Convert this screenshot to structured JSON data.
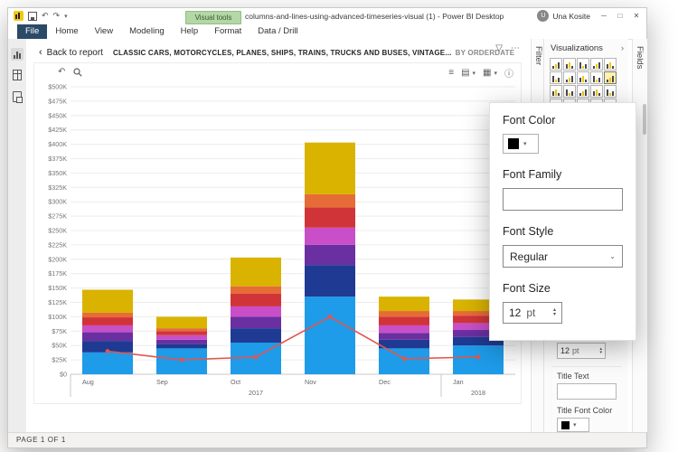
{
  "window": {
    "title": "columns-and-lines-using-advanced-timeseries-visual (1) - Power BI Desktop",
    "user": "Una Kosite",
    "user_initial": "U"
  },
  "ribbon": {
    "file": "File",
    "tabs": [
      "Home",
      "View",
      "Modeling",
      "Help"
    ],
    "contextual_group": "Visual tools",
    "contextual_tabs": [
      "Format",
      "Data / Drill"
    ]
  },
  "canvas": {
    "back_label": "Back to report",
    "visual_title": "CLASSIC CARS, MOTORCYCLES, PLANES, SHIPS, TRAINS, TRUCKS AND BUSES, VINTAGE...",
    "visual_title_by": "BY ORDERDATE"
  },
  "filters_pane": {
    "title": "Filter"
  },
  "visualizations_pane": {
    "title": "Visualizations",
    "selected": "line-and-stacked-column",
    "icons": [
      "stacked-bar-chart",
      "stacked-column-chart",
      "clustered-bar-chart",
      "clustered-column-chart",
      "100-stacked-bar-chart",
      "100-stacked-column-chart",
      "line-chart",
      "area-chart",
      "stacked-area-chart",
      "line-and-stacked-column",
      "line-and-clustered-column",
      "ribbon-chart",
      "waterfall-chart",
      "scatter-chart",
      "pie-chart",
      "donut-chart",
      "treemap",
      "map",
      "filled-map",
      "funnel",
      "gauge",
      "card",
      "multi-row-card",
      "kpi",
      "slicer",
      "table",
      "matrix",
      "r-script-visual"
    ]
  },
  "fields_pane": {
    "title": "Fields"
  },
  "format_popup": {
    "font_color_label": "Font Color",
    "font_family_label": "Font Family",
    "font_family_value": "",
    "font_style_label": "Font Style",
    "font_style_value": "Regular",
    "font_size_label": "Font Size",
    "font_size_value": "12",
    "font_size_unit": "pt"
  },
  "format_pane": {
    "text_size_value": "12",
    "text_size_unit": "pt",
    "title_text_label": "Title Text",
    "title_font_color_label": "Title Font Color"
  },
  "status_bar": {
    "page_indicator": "PAGE 1 OF 1"
  },
  "chart_data": {
    "type": "bar",
    "stacked": true,
    "title": "CLASSIC CARS, MOTORCYCLES, PLANES, SHIPS, TRAINS, TRUCKS AND BUSES, VINTAGE... BY ORDERDATE",
    "categories": [
      "Aug",
      "Sep",
      "Oct",
      "Nov",
      "Dec",
      "Jan"
    ],
    "year_groups": [
      {
        "label": "2017",
        "span": [
          0,
          4
        ]
      },
      {
        "label": "2018",
        "span": [
          5,
          5
        ]
      }
    ],
    "series": [
      {
        "name": "CLASSIC CARS",
        "color": "#1E9BE9",
        "values": [
          38000,
          45000,
          55000,
          135000,
          45000,
          50000
        ]
      },
      {
        "name": "MOTORCYCLES",
        "color": "#1F3A93",
        "values": [
          20000,
          8000,
          25000,
          55000,
          15000,
          15000
        ]
      },
      {
        "name": "PLANES",
        "color": "#6A2FA0",
        "values": [
          15000,
          7000,
          20000,
          35000,
          12000,
          12000
        ]
      },
      {
        "name": "SHIPS",
        "color": "#C84FC8",
        "values": [
          12000,
          8000,
          18000,
          30000,
          13000,
          12000
        ]
      },
      {
        "name": "TRAINS",
        "color": "#D13438",
        "values": [
          14000,
          7000,
          22000,
          35000,
          15000,
          13000
        ]
      },
      {
        "name": "TRUCKS AND BUSES",
        "color": "#E66C37",
        "values": [
          8000,
          5000,
          13000,
          23000,
          10000,
          8000
        ]
      },
      {
        "name": "VINTAGE CARS",
        "color": "#D9B300",
        "values": [
          40000,
          20000,
          50000,
          90000,
          25000,
          20000
        ]
      }
    ],
    "line_series": {
      "name": "ORDERDATE",
      "color": "#E0564F",
      "values": [
        40000,
        25000,
        30000,
        100000,
        27000,
        30000
      ]
    },
    "ylim": [
      0,
      500000
    ],
    "ytick_step": 25000,
    "grid": true,
    "legend_position": "none"
  }
}
